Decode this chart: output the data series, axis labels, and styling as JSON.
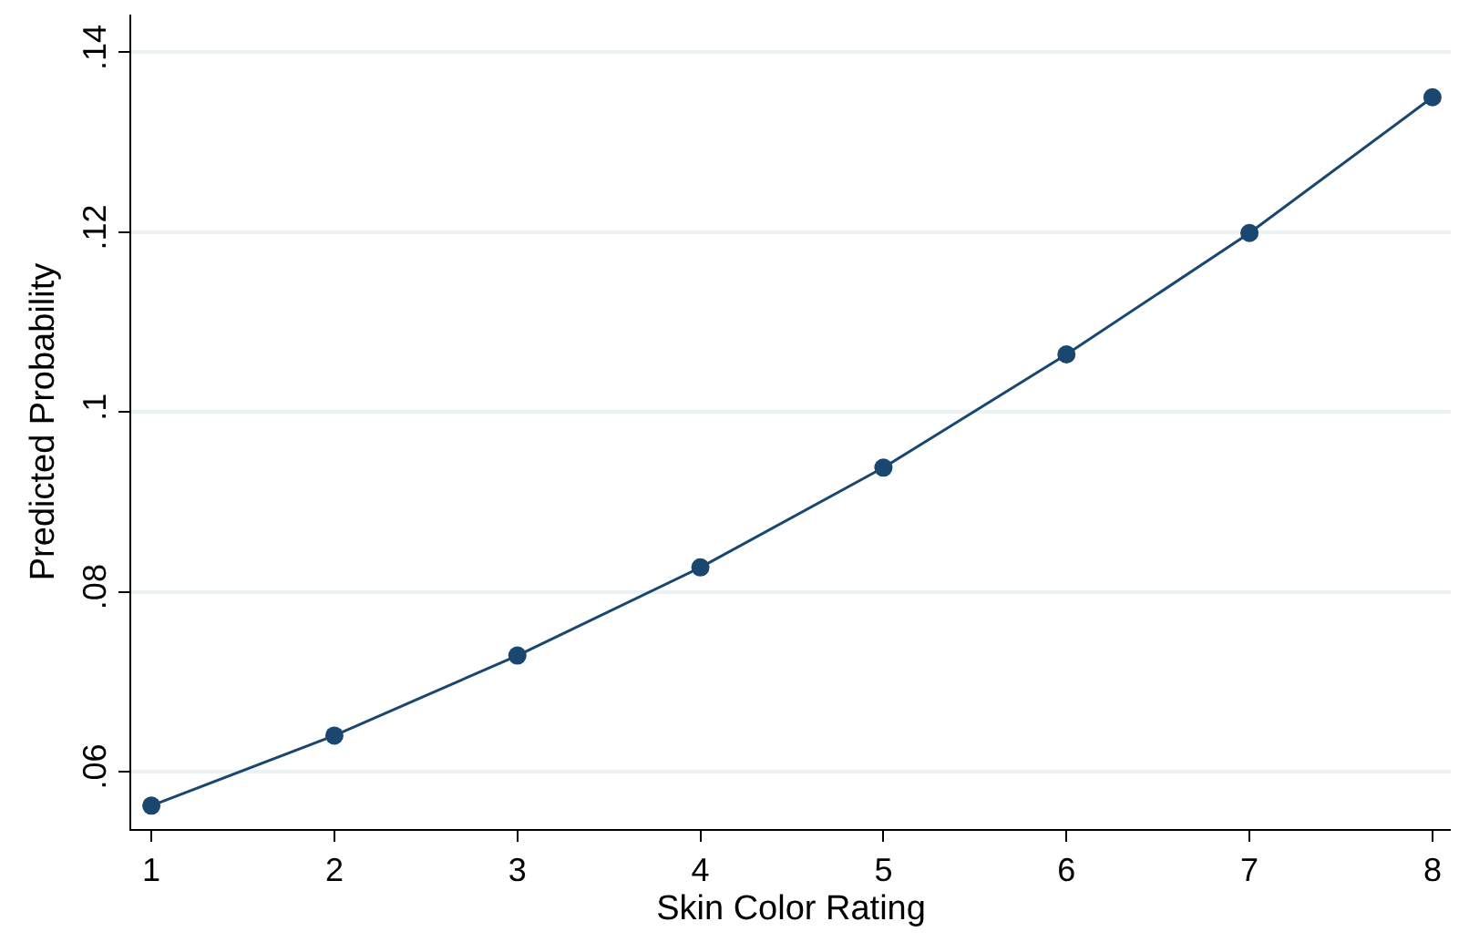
{
  "chart_data": {
    "type": "line",
    "xlabel": "Skin Color Rating",
    "ylabel": "Predicted Probability",
    "x": [
      1,
      2,
      3,
      4,
      5,
      6,
      7,
      8
    ],
    "series": [
      {
        "color": "#1a476f",
        "values": [
          0.0562,
          0.064,
          0.0729,
          0.0827,
          0.0938,
          0.1064,
          0.1199,
          0.135
        ]
      }
    ],
    "xlim": [
      0.89,
      8.1
    ],
    "xticks": [
      1,
      2,
      3,
      4,
      5,
      6,
      7,
      8
    ],
    "ylim": [
      0.0536,
      0.1442
    ],
    "yticks": [
      {
        "value": 0.06,
        "label": ".06"
      },
      {
        "value": 0.08,
        "label": ".08"
      },
      {
        "value": 0.1,
        "label": ".1"
      },
      {
        "value": 0.12,
        "label": ".12"
      },
      {
        "value": 0.14,
        "label": ".14"
      }
    ],
    "grid": "y",
    "marker": "circle",
    "line_style": "solid",
    "legend": false
  }
}
